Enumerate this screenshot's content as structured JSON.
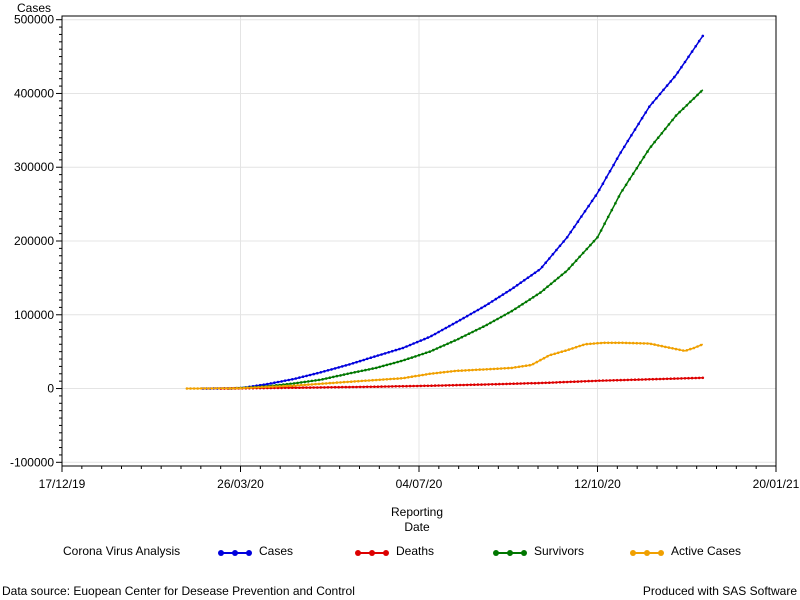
{
  "chart_data": {
    "type": "line",
    "ylabel": "Cases",
    "xlabel_lines": [
      "Reporting",
      "Date"
    ],
    "x_ticks": [
      "17/12/19",
      "26/03/20",
      "04/07/20",
      "12/10/20",
      "20/01/21"
    ],
    "x_tick_dates": [
      "2019-12-17",
      "2020-03-26",
      "2020-07-04",
      "2020-10-12",
      "2021-01-20"
    ],
    "xlim": [
      "2019-12-17",
      "2021-01-20"
    ],
    "y_ticks": [
      -100000,
      0,
      100000,
      200000,
      300000,
      400000,
      500000
    ],
    "y_tick_labels": [
      "-100000",
      "0",
      "100000",
      "200000",
      "300000",
      "400000",
      "500000"
    ],
    "ylim": [
      -105000,
      505000
    ],
    "grid": true,
    "legend_title": "Corona Virus Analysis",
    "legend_position": "bottom",
    "series": [
      {
        "name": "Cases",
        "color": "#0000dd",
        "points": [
          [
            "2020-03-05",
            0
          ],
          [
            "2020-03-26",
            500
          ],
          [
            "2020-04-10",
            6000
          ],
          [
            "2020-04-25",
            13000
          ],
          [
            "2020-05-10",
            22000
          ],
          [
            "2020-05-25",
            32000
          ],
          [
            "2020-06-10",
            44000
          ],
          [
            "2020-06-25",
            55000
          ],
          [
            "2020-07-10",
            70000
          ],
          [
            "2020-07-25",
            90000
          ],
          [
            "2020-08-10",
            112000
          ],
          [
            "2020-08-25",
            135000
          ],
          [
            "2020-09-10",
            162000
          ],
          [
            "2020-09-25",
            205000
          ],
          [
            "2020-10-12",
            265000
          ],
          [
            "2020-10-25",
            320000
          ],
          [
            "2020-11-10",
            382000
          ],
          [
            "2020-11-25",
            425000
          ],
          [
            "2020-12-10",
            478000
          ]
        ]
      },
      {
        "name": "Deaths",
        "color": "#dd0000",
        "points": [
          [
            "2020-03-15",
            0
          ],
          [
            "2020-04-10",
            700
          ],
          [
            "2020-05-10",
            1500
          ],
          [
            "2020-06-10",
            2500
          ],
          [
            "2020-07-10",
            3800
          ],
          [
            "2020-08-10",
            5500
          ],
          [
            "2020-09-10",
            7500
          ],
          [
            "2020-10-12",
            10500
          ],
          [
            "2020-11-10",
            12500
          ],
          [
            "2020-12-10",
            14500
          ]
        ]
      },
      {
        "name": "Survivors",
        "color": "#007700",
        "points": [
          [
            "2020-03-20",
            0
          ],
          [
            "2020-04-10",
            3000
          ],
          [
            "2020-04-25",
            7000
          ],
          [
            "2020-05-10",
            12000
          ],
          [
            "2020-05-25",
            20000
          ],
          [
            "2020-06-10",
            28000
          ],
          [
            "2020-06-25",
            38000
          ],
          [
            "2020-07-10",
            50000
          ],
          [
            "2020-07-25",
            66000
          ],
          [
            "2020-08-10",
            85000
          ],
          [
            "2020-08-25",
            105000
          ],
          [
            "2020-09-10",
            130000
          ],
          [
            "2020-09-25",
            160000
          ],
          [
            "2020-10-12",
            205000
          ],
          [
            "2020-10-25",
            265000
          ],
          [
            "2020-11-10",
            325000
          ],
          [
            "2020-11-25",
            370000
          ],
          [
            "2020-12-10",
            405000
          ]
        ]
      },
      {
        "name": "Active Cases",
        "color": "#f0a000",
        "points": [
          [
            "2020-02-25",
            0
          ],
          [
            "2020-03-26",
            500
          ],
          [
            "2020-04-25",
            4000
          ],
          [
            "2020-05-25",
            9000
          ],
          [
            "2020-06-25",
            14000
          ],
          [
            "2020-07-10",
            20000
          ],
          [
            "2020-07-25",
            24000
          ],
          [
            "2020-08-10",
            26000
          ],
          [
            "2020-08-25",
            28000
          ],
          [
            "2020-09-05",
            32000
          ],
          [
            "2020-09-15",
            45000
          ],
          [
            "2020-09-25",
            52000
          ],
          [
            "2020-10-05",
            60000
          ],
          [
            "2020-10-15",
            62000
          ],
          [
            "2020-10-25",
            62000
          ],
          [
            "2020-11-10",
            61000
          ],
          [
            "2020-11-20",
            56000
          ],
          [
            "2020-11-30",
            51000
          ],
          [
            "2020-12-05",
            55000
          ],
          [
            "2020-12-10",
            60000
          ]
        ]
      }
    ]
  },
  "footnote_left": "Data source: Euopean Center for Desease Prevention and Control",
  "footnote_right": "Produced with SAS Software"
}
